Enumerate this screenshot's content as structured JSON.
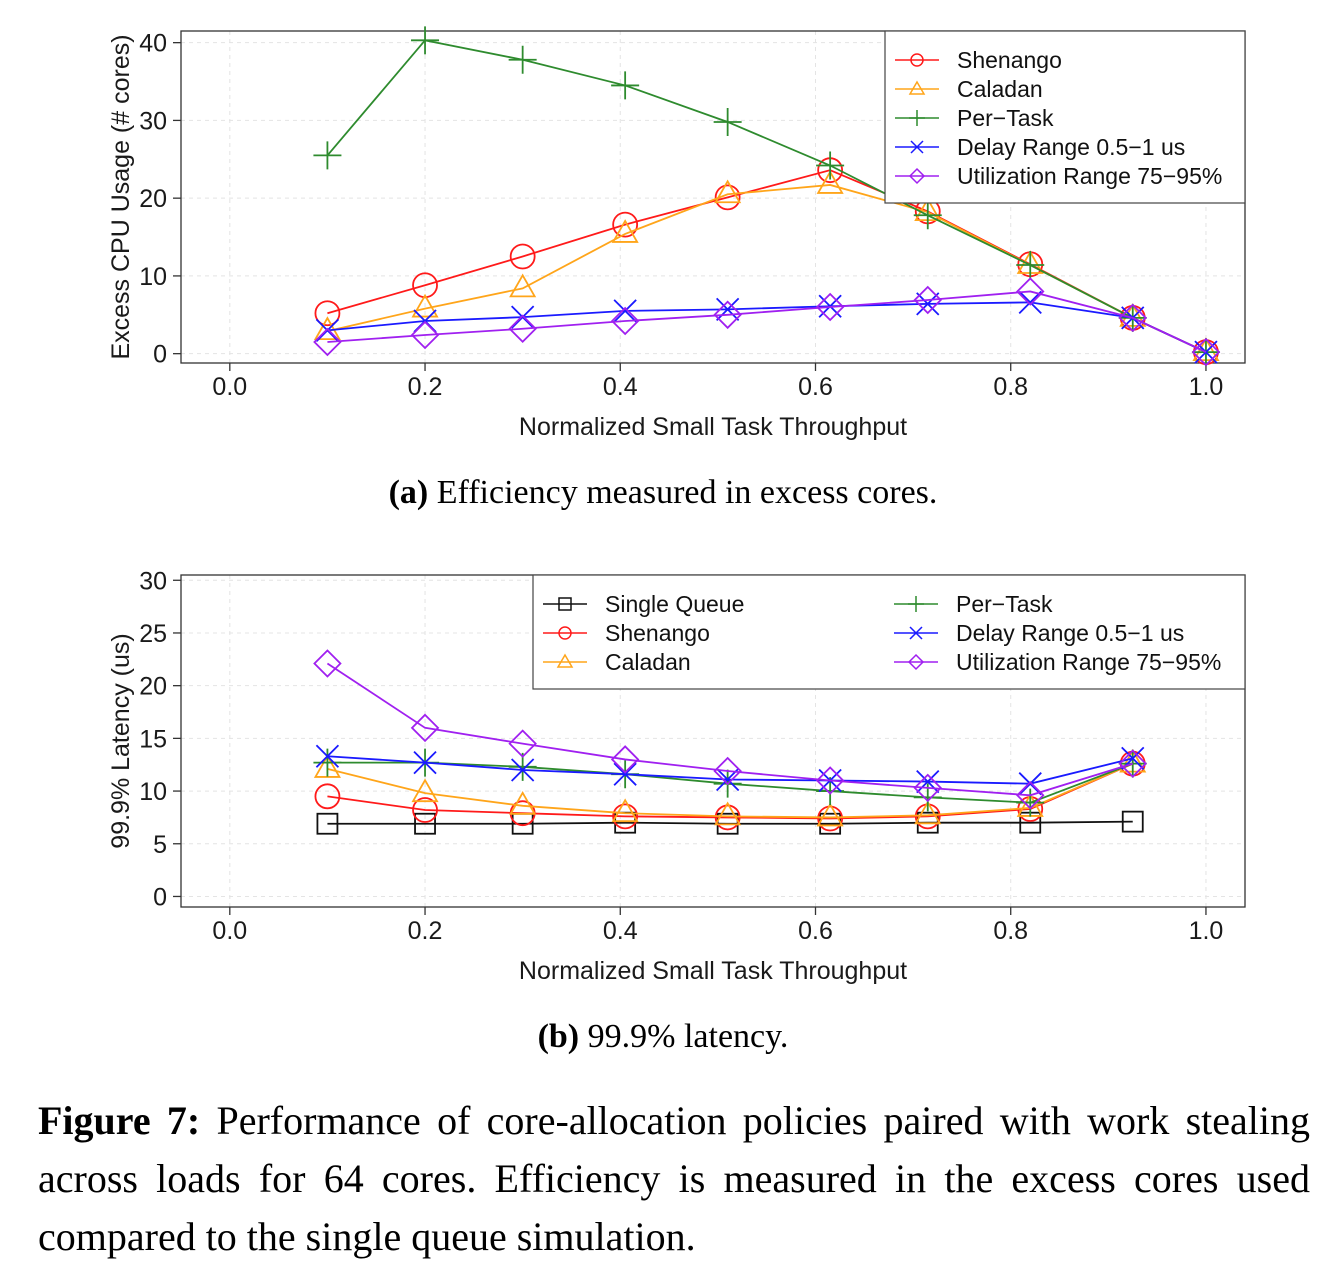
{
  "chart_data": [
    {
      "type": "line",
      "panel": "a",
      "xlabel": "Normalized Small Task Throughput",
      "ylabel": "Excess CPU Usage (# cores)",
      "xlim": [
        -0.05,
        1.04
      ],
      "ylim": [
        -1.2,
        41.5
      ],
      "xticks": [
        0.0,
        0.2,
        0.4,
        0.6,
        0.8,
        1.0
      ],
      "xtick_labels": [
        "0.0",
        "0.2",
        "0.4",
        "0.6",
        "0.8",
        "1.0"
      ],
      "yticks": [
        0,
        10,
        20,
        30,
        40
      ],
      "ytick_labels": [
        "0",
        "10",
        "20",
        "30",
        "40"
      ],
      "grid": true,
      "legend_position": "top-right",
      "legend_columns": 1,
      "series": [
        {
          "name": "Shenango",
          "color": "#ff1a1a",
          "marker": "circle",
          "x": [
            0.1,
            0.2,
            0.3,
            0.405,
            0.51,
            0.615,
            0.715,
            0.82,
            0.925,
            1.0
          ],
          "y": [
            5.2,
            8.8,
            12.5,
            16.6,
            20.1,
            23.6,
            18.3,
            11.5,
            4.6,
            0.2
          ]
        },
        {
          "name": "Caladan",
          "color": "#ffa51a",
          "marker": "triangle",
          "x": [
            0.1,
            0.2,
            0.3,
            0.405,
            0.51,
            0.615,
            0.715,
            0.82,
            0.925,
            1.0
          ],
          "y": [
            2.9,
            5.8,
            8.4,
            15.4,
            20.5,
            21.7,
            18.2,
            11.4,
            4.6,
            0.2
          ]
        },
        {
          "name": "Per−Task",
          "color": "#2e8b2e",
          "marker": "plus",
          "x": [
            0.1,
            0.2,
            0.3,
            0.405,
            0.51,
            0.615,
            0.715,
            0.82,
            0.925,
            1.0
          ],
          "y": [
            25.5,
            40.3,
            37.8,
            34.5,
            29.8,
            24.2,
            17.8,
            11.4,
            4.6,
            0.2
          ]
        },
        {
          "name": "Delay Range 0.5−1 us",
          "color": "#1a1aff",
          "marker": "cross",
          "x": [
            0.1,
            0.2,
            0.3,
            0.405,
            0.51,
            0.615,
            0.715,
            0.82,
            0.925,
            1.0
          ],
          "y": [
            3.0,
            4.2,
            4.7,
            5.5,
            5.7,
            6.1,
            6.4,
            6.6,
            4.6,
            0.2
          ]
        },
        {
          "name": "Utilization Range 75−95%",
          "color": "#a020f0",
          "marker": "diamond",
          "x": [
            0.1,
            0.2,
            0.3,
            0.405,
            0.51,
            0.615,
            0.715,
            0.82,
            0.925,
            1.0
          ],
          "y": [
            1.5,
            2.4,
            3.2,
            4.2,
            5.0,
            6.0,
            6.9,
            8.0,
            4.6,
            0.2
          ]
        }
      ]
    },
    {
      "type": "line",
      "panel": "b",
      "xlabel": "Normalized Small Task Throughput",
      "ylabel": "99.9% Latency (us)",
      "xlim": [
        -0.05,
        1.04
      ],
      "ylim": [
        -1.0,
        30.5
      ],
      "xticks": [
        0.0,
        0.2,
        0.4,
        0.6,
        0.8,
        1.0
      ],
      "xtick_labels": [
        "0.0",
        "0.2",
        "0.4",
        "0.6",
        "0.8",
        "1.0"
      ],
      "yticks": [
        0,
        5,
        10,
        15,
        20,
        25,
        30
      ],
      "ytick_labels": [
        "0",
        "5",
        "10",
        "15",
        "20",
        "25",
        "30"
      ],
      "grid": true,
      "legend_position": "top-right",
      "legend_columns": 2,
      "series": [
        {
          "name": "Single Queue",
          "color": "#111111",
          "marker": "square",
          "x": [
            0.1,
            0.2,
            0.3,
            0.405,
            0.51,
            0.615,
            0.715,
            0.82,
            0.925
          ],
          "y": [
            6.9,
            6.9,
            6.9,
            7.0,
            6.9,
            6.9,
            7.0,
            7.0,
            7.1
          ]
        },
        {
          "name": "Shenango",
          "color": "#ff1a1a",
          "marker": "circle",
          "x": [
            0.1,
            0.2,
            0.3,
            0.405,
            0.51,
            0.615,
            0.715,
            0.82,
            0.925
          ],
          "y": [
            9.5,
            8.2,
            7.9,
            7.6,
            7.5,
            7.4,
            7.6,
            8.3,
            12.6
          ]
        },
        {
          "name": "Caladan",
          "color": "#ffa51a",
          "marker": "triangle",
          "x": [
            0.1,
            0.2,
            0.3,
            0.405,
            0.51,
            0.615,
            0.715,
            0.82,
            0.925
          ],
          "y": [
            12.1,
            9.8,
            8.6,
            7.9,
            7.6,
            7.5,
            7.7,
            8.4,
            12.6
          ]
        },
        {
          "name": "Per−Task",
          "color": "#2e8b2e",
          "marker": "plus",
          "x": [
            0.1,
            0.2,
            0.3,
            0.405,
            0.51,
            0.615,
            0.715,
            0.82,
            0.925
          ],
          "y": [
            12.7,
            12.7,
            12.3,
            11.6,
            10.7,
            10.0,
            9.4,
            8.9,
            12.6
          ]
        },
        {
          "name": "Delay Range 0.5−1 us",
          "color": "#1a1aff",
          "marker": "cross",
          "x": [
            0.1,
            0.2,
            0.3,
            0.405,
            0.51,
            0.615,
            0.715,
            0.82,
            0.925
          ],
          "y": [
            13.3,
            12.7,
            12.0,
            11.6,
            11.1,
            11.0,
            10.9,
            10.7,
            13.1
          ]
        },
        {
          "name": "Utilization Range 75−95%",
          "color": "#a020f0",
          "marker": "diamond",
          "x": [
            0.1,
            0.2,
            0.3,
            0.405,
            0.51,
            0.615,
            0.715,
            0.82,
            0.925
          ],
          "y": [
            22.1,
            16.0,
            14.5,
            13.0,
            11.9,
            11.0,
            10.3,
            9.6,
            12.6
          ]
        }
      ]
    }
  ],
  "captions": {
    "a_label": "(a)",
    "a_text": " Efficiency measured in excess cores.",
    "b_label": "(b)",
    "b_text": " 99.9% latency.",
    "figure_label": "Figure 7:",
    "figure_text": " Performance of core-allocation policies paired with work stealing across loads for 64 cores. Efficiency is measured in the excess cores used compared to the single queue simulation."
  }
}
